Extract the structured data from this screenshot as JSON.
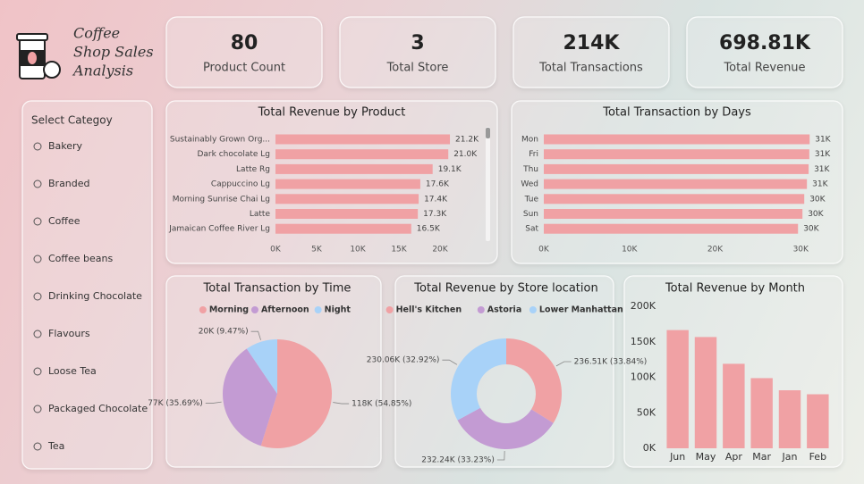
{
  "header": {
    "title_lines": [
      "Coffee",
      "Shop Sales",
      "Analysis"
    ]
  },
  "kpis": [
    {
      "value": "80",
      "label": "Product Count"
    },
    {
      "value": "3",
      "label": "Total Store"
    },
    {
      "value": "214K",
      "label": "Total Transactions"
    },
    {
      "value": "698.81K",
      "label": "Total Revenue"
    }
  ],
  "slicer": {
    "title": "Select Categoy",
    "options": [
      "Bakery",
      "Branded",
      "Coffee",
      "Coffee beans",
      "Drinking Chocolate",
      "Flavours",
      "Loose Tea",
      "Packaged Chocolate",
      "Tea"
    ]
  },
  "chart_data": [
    {
      "type": "hbar",
      "title": "Total Revenue by Product",
      "categories": [
        "Sustainably Grown Org...",
        "Dark chocolate Lg",
        "Latte Rg",
        "Cappuccino Lg",
        "Morning Sunrise Chai Lg",
        "Latte",
        "Jamaican Coffee River Lg"
      ],
      "values": [
        21200,
        21000,
        19100,
        17600,
        17400,
        17300,
        16500
      ],
      "value_labels": [
        "21.2K",
        "21.0K",
        "19.1K",
        "17.6K",
        "17.4K",
        "17.3K",
        "16.5K"
      ],
      "color": "#f0a1a4",
      "xlim": [
        0,
        25000
      ],
      "xticks": [
        {
          "value": 0,
          "label": "0K"
        },
        {
          "value": 5000,
          "label": "5K"
        },
        {
          "value": 10000,
          "label": "10K"
        },
        {
          "value": 15000,
          "label": "15K"
        },
        {
          "value": 20000,
          "label": "20K"
        }
      ]
    },
    {
      "type": "hbar",
      "title": "Total Transaction by Days",
      "categories": [
        "Mon",
        "Fri",
        "Thu",
        "Wed",
        "Tue",
        "Sun",
        "Sat"
      ],
      "values": [
        31040,
        31000,
        30920,
        30720,
        30410,
        30200,
        29680
      ],
      "value_labels": [
        "31K",
        "31K",
        "31K",
        "31K",
        "30K",
        "30K",
        "30K"
      ],
      "color": "#f0a1a4",
      "xlim": [
        0,
        33000
      ],
      "xticks": [
        {
          "value": 0,
          "label": "0K"
        },
        {
          "value": 10000,
          "label": "10K"
        },
        {
          "value": 20000,
          "label": "20K"
        },
        {
          "value": 30000,
          "label": "30K"
        }
      ]
    },
    {
      "type": "pie",
      "title": "Total Transaction by Time",
      "categories": [
        "Morning",
        "Afternoon",
        "Night"
      ],
      "values": [
        117900,
        76700,
        20350
      ],
      "value_labels": [
        "118K (54.85%)",
        "77K (35.69%)",
        "20K (9.47%)"
      ],
      "colors": [
        "#f0a1a4",
        "#c39bd3",
        "#a8d2f8"
      ]
    },
    {
      "type": "donut",
      "title": "Total Revenue by Store location",
      "categories": [
        "Hell's Kitchen",
        "Astoria",
        "Lower Manhattan"
      ],
      "values": [
        236510,
        232240,
        230060
      ],
      "value_labels": [
        "236.51K (33.84%)",
        "232.24K (33.23%)",
        "230.06K (32.92%)"
      ],
      "colors": [
        "#f0a1a4",
        "#c39bd3",
        "#a8d2f8"
      ]
    },
    {
      "type": "bar",
      "title": "Total Revenue by Month",
      "categories": [
        "Jun",
        "May",
        "Apr",
        "Mar",
        "Jan",
        "Feb"
      ],
      "values": [
        166500,
        156700,
        119000,
        98800,
        81700,
        76100
      ],
      "color": "#f0a1a4",
      "ylim": [
        0,
        200000
      ],
      "yticks": [
        {
          "value": 0,
          "label": "0K"
        },
        {
          "value": 50000,
          "label": "50K"
        },
        {
          "value": 100000,
          "label": "100K"
        },
        {
          "value": 150000,
          "label": "150K"
        },
        {
          "value": 200000,
          "label": "200K"
        }
      ]
    }
  ]
}
